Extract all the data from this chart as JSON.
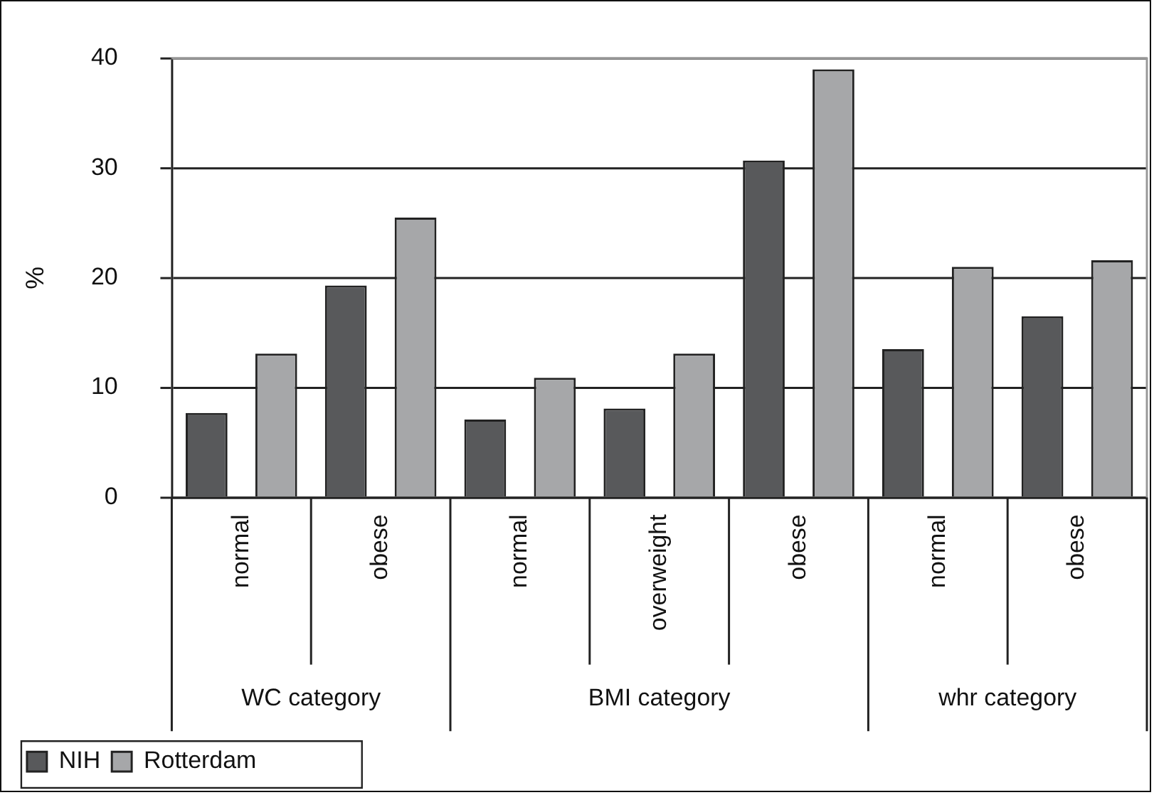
{
  "chart_data": {
    "type": "bar",
    "ylabel": "%",
    "categories": [
      "normal",
      "obese",
      "normal",
      "overweight",
      "obese",
      "normal",
      "obese"
    ],
    "series": [
      {
        "name": "NIH",
        "color": "#58595b",
        "values": [
          7.7,
          19.3,
          7.1,
          8.1,
          30.7,
          13.5,
          16.5
        ]
      },
      {
        "name": "Rotterdam",
        "color": "#a6a7a9",
        "values": [
          13.1,
          25.5,
          10.9,
          13.1,
          39.0,
          21.0,
          21.6
        ]
      }
    ],
    "annotations": [
      "WC category",
      "BMI category",
      "whr category"
    ],
    "ylim": [
      0,
      40
    ],
    "yticks": [
      0,
      10,
      20,
      30,
      40
    ],
    "grid": "y",
    "legend": "bottom left"
  }
}
